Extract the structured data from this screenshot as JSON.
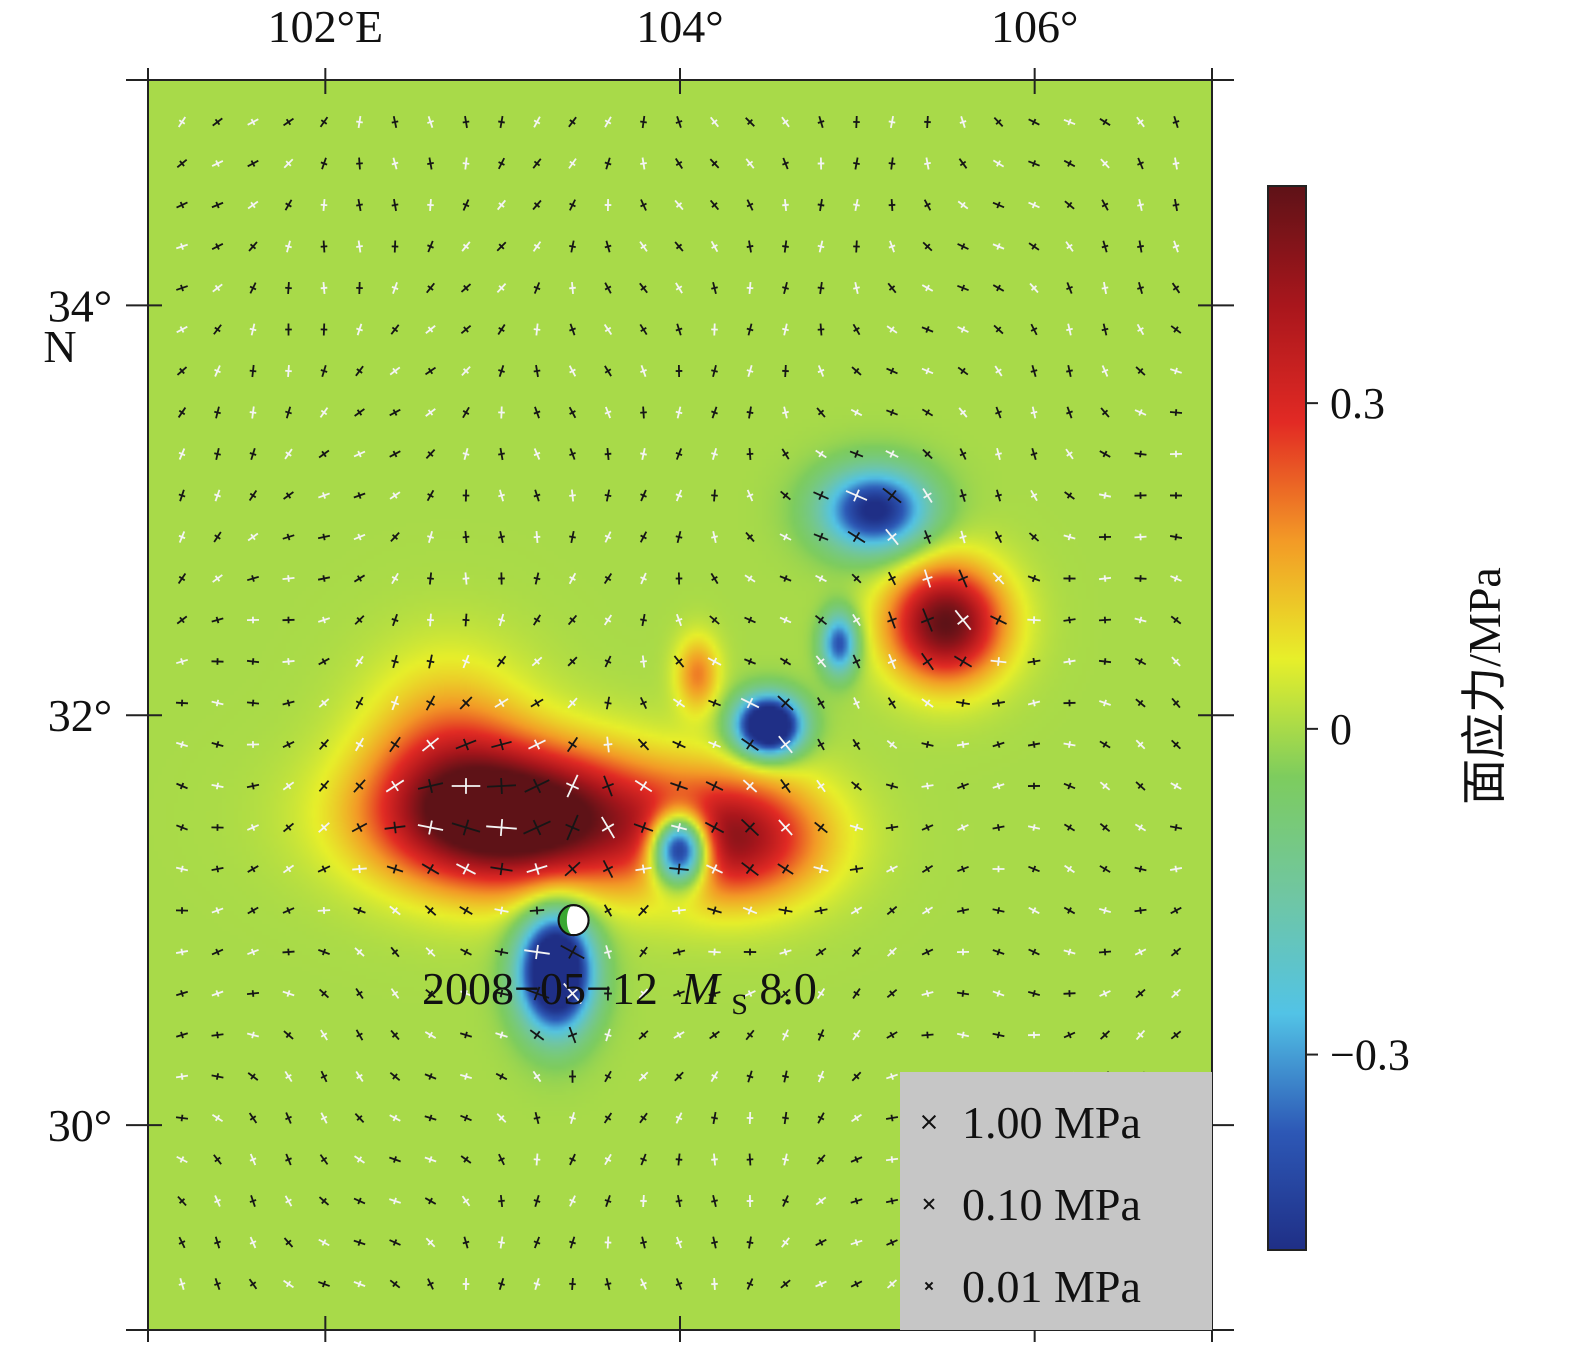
{
  "map": {
    "x_axis": {
      "ticks": [
        {
          "value": 102,
          "label": "102°E"
        },
        {
          "value": 104,
          "label": "104°"
        },
        {
          "value": 106,
          "label": "106°"
        }
      ],
      "range": [
        101.0,
        107.0
      ]
    },
    "y_axis": {
      "ticks": [
        {
          "value": 34,
          "label": "34°"
        },
        {
          "value": 32,
          "label": "32°"
        },
        {
          "value": 30,
          "label": "30°"
        }
      ],
      "unit_label": "N",
      "range": [
        29.0,
        35.1
      ]
    },
    "colorbar": {
      "title": "面应力/MPa",
      "ticks": [
        {
          "value": 0.3,
          "label": "0.3"
        },
        {
          "value": 0,
          "label": "0"
        },
        {
          "value": -0.3,
          "label": "−0.3"
        }
      ],
      "range": [
        -0.48,
        0.5
      ],
      "colors": [
        "#1f2f86",
        "#2d58b6",
        "#52c3e6",
        "#70c6a2",
        "#7dcc5e",
        "#e7ef2a",
        "#f39a26",
        "#e22a24",
        "#a8161c",
        "#5e1217"
      ]
    },
    "event": {
      "label_date": "2008−05−12",
      "label_mag_symbol": "M",
      "label_mag_subscript": "S",
      "label_mag_value": "8.0",
      "lon": 103.4,
      "lat": 31.0,
      "beachball_colors": [
        "#3aa832",
        "#ffffff"
      ]
    },
    "legend": {
      "items": [
        {
          "label": "1.00 MPa"
        },
        {
          "label": "0.10 MPa"
        },
        {
          "label": "0.01 MPa"
        }
      ],
      "background": "#c6c6c6"
    },
    "stress_field_features": [
      {
        "type": "high",
        "lon": 103.1,
        "lat": 31.5,
        "sx": 0.75,
        "sy": 0.33,
        "amp": 0.62
      },
      {
        "type": "high",
        "lon": 104.3,
        "lat": 31.4,
        "sx": 0.5,
        "sy": 0.3,
        "amp": 0.4
      },
      {
        "type": "high",
        "lon": 102.7,
        "lat": 31.8,
        "sx": 0.45,
        "sy": 0.45,
        "amp": 0.2
      },
      {
        "type": "high",
        "lon": 105.5,
        "lat": 32.45,
        "sx": 0.32,
        "sy": 0.28,
        "amp": 0.5
      },
      {
        "type": "high",
        "lon": 104.1,
        "lat": 32.2,
        "sx": 0.12,
        "sy": 0.18,
        "amp": 0.2
      },
      {
        "type": "low",
        "lon": 104.0,
        "lat": 31.35,
        "sx": 0.16,
        "sy": 0.17,
        "amp": -0.8
      },
      {
        "type": "low",
        "lon": 103.3,
        "lat": 30.75,
        "sx": 0.2,
        "sy": 0.28,
        "amp": -0.75
      },
      {
        "type": "low",
        "lon": 105.1,
        "lat": 33.0,
        "sx": 0.3,
        "sy": 0.2,
        "amp": -0.5
      },
      {
        "type": "low",
        "lon": 104.5,
        "lat": 31.95,
        "sx": 0.18,
        "sy": 0.14,
        "amp": -0.75
      },
      {
        "type": "low",
        "lon": 104.9,
        "lat": 32.35,
        "sx": 0.1,
        "sy": 0.15,
        "amp": -0.4
      }
    ]
  }
}
